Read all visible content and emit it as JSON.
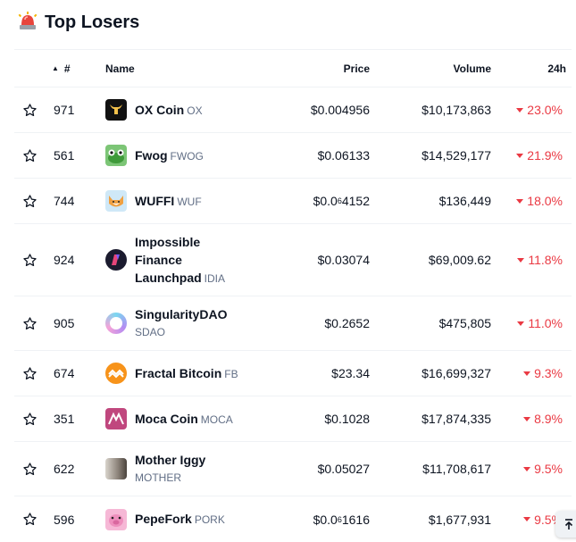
{
  "title": "Top Losers",
  "columns": {
    "rank": "#",
    "name": "Name",
    "price": "Price",
    "volume": "Volume",
    "change": "24h"
  },
  "rows": [
    {
      "rank": "971",
      "name": "OX Coin",
      "symbol": "OX",
      "price": "$0.004956",
      "volume": "$10,173,863",
      "change": "23.0%",
      "logo": "ox-coin-logo"
    },
    {
      "rank": "561",
      "name": "Fwog",
      "symbol": "FWOG",
      "price": "$0.06133",
      "volume": "$14,529,177",
      "change": "21.9%",
      "logo": "fwog-logo"
    },
    {
      "rank": "744",
      "name": "WUFFI",
      "symbol": "WUF",
      "price_prefix": "$0.0",
      "price_sub": "6",
      "price_rest": "4152",
      "volume": "$136,449",
      "change": "18.0%",
      "logo": "wuffi-logo"
    },
    {
      "rank": "924",
      "name": "Impossible Finance Launchpad",
      "symbol": "IDIA",
      "price": "$0.03074",
      "volume": "$69,009.62",
      "change": "11.8%",
      "logo": "idia-logo"
    },
    {
      "rank": "905",
      "name": "SingularityDAO",
      "symbol": "SDAO",
      "price": "$0.2652",
      "volume": "$475,805",
      "change": "11.0%",
      "logo": "sdao-logo"
    },
    {
      "rank": "674",
      "name": "Fractal Bitcoin",
      "symbol": "FB",
      "price": "$23.34",
      "volume": "$16,699,327",
      "change": "9.3%",
      "logo": "fb-logo"
    },
    {
      "rank": "351",
      "name": "Moca Coin",
      "symbol": "MOCA",
      "price": "$0.1028",
      "volume": "$17,874,335",
      "change": "8.9%",
      "logo": "moca-logo"
    },
    {
      "rank": "622",
      "name": "Mother Iggy",
      "symbol": "MOTHER",
      "price": "$0.05027",
      "volume": "$11,708,617",
      "change": "9.5%",
      "logo": "mother-logo"
    },
    {
      "rank": "596",
      "name": "PepeFork",
      "symbol": "PORK",
      "price_prefix": "$0.0",
      "price_sub": "6",
      "price_rest": "1616",
      "volume": "$1,677,931",
      "change": "9.5%",
      "logo": "pork-logo"
    }
  ],
  "colors": {
    "negative": "#ea3943",
    "muted": "#616e85",
    "border": "#eff2f5"
  }
}
